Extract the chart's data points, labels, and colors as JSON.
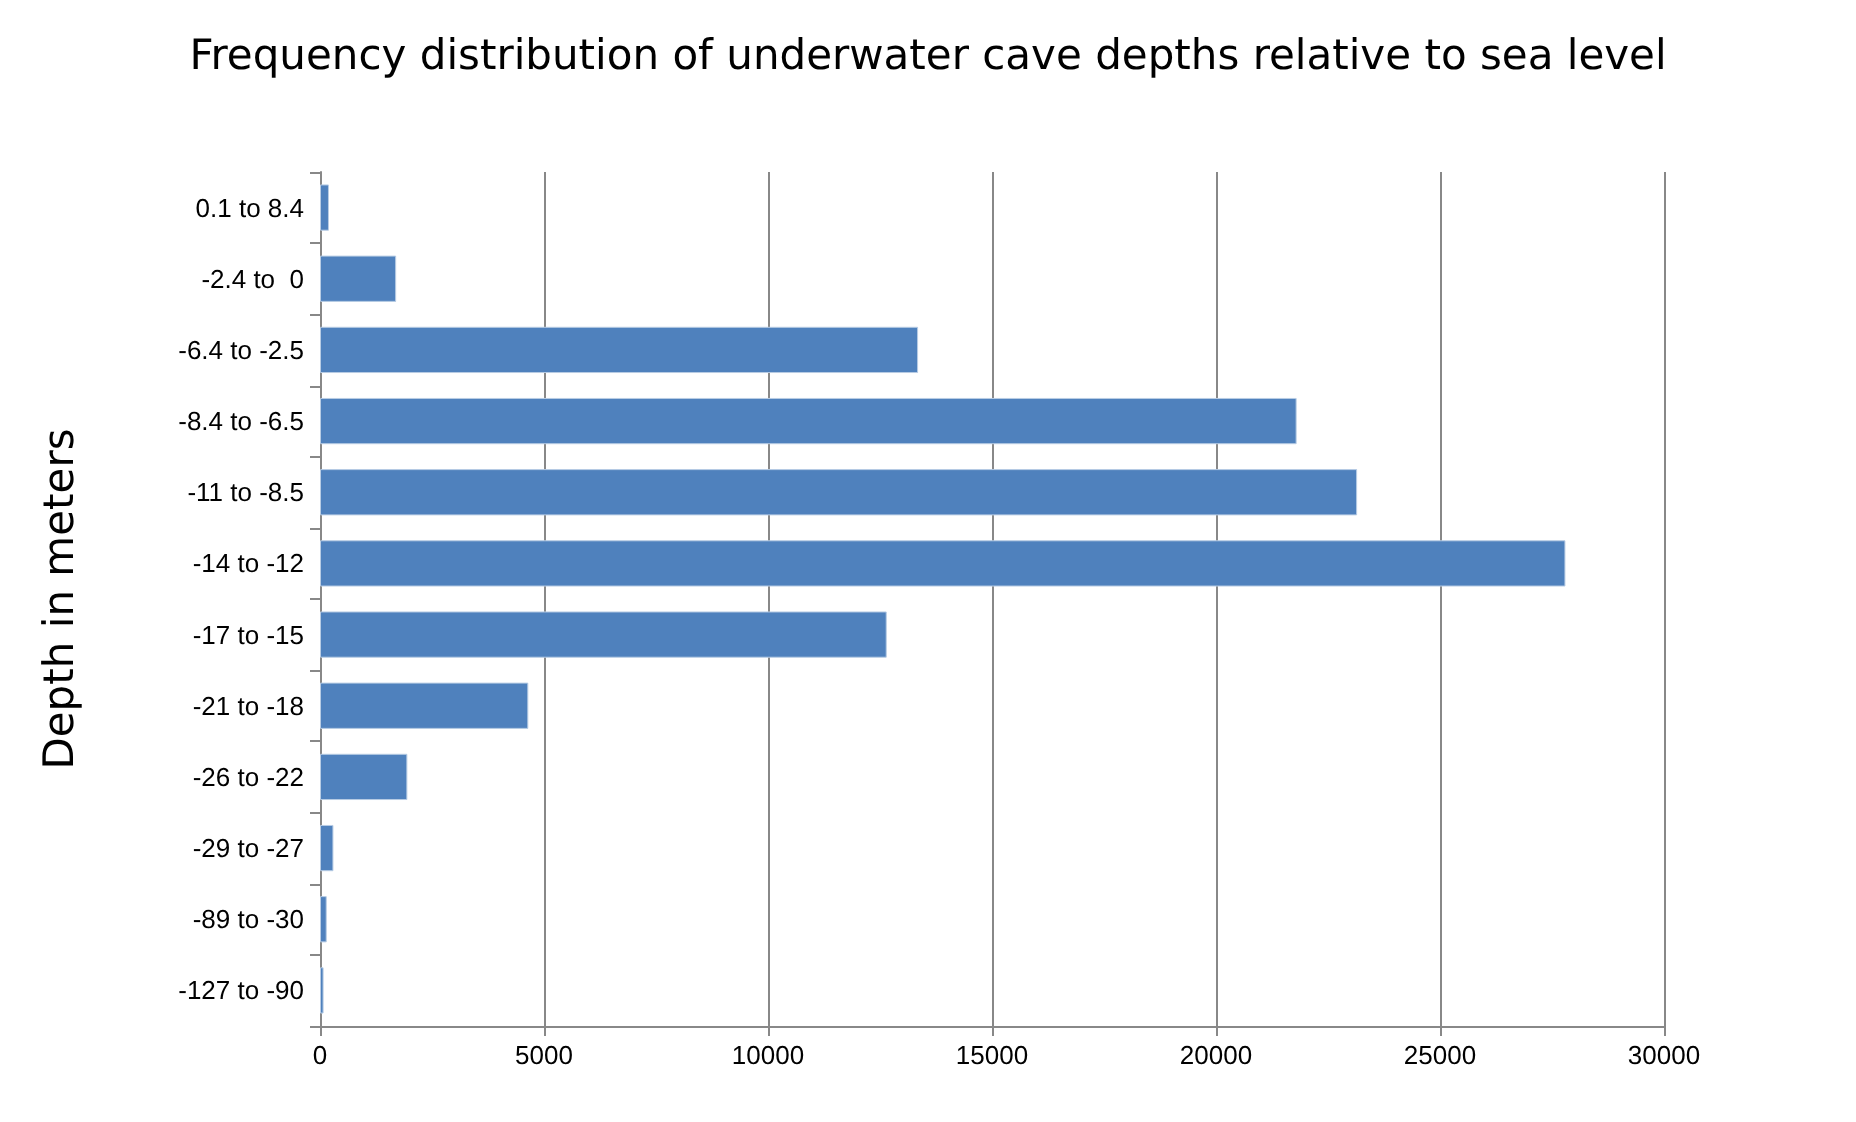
{
  "chart_data": {
    "type": "bar",
    "orientation": "horizontal",
    "title": "Frequency distribution of underwater cave depths relative to sea level",
    "ylabel": "Depth in meters",
    "categories": [
      "0.1 to 8.4",
      "-2.4 to  0",
      "-6.4 to -2.5",
      "-8.4 to -6.5",
      "-11 to -8.5",
      "-14 to -12",
      "-17 to -15",
      "-21 to -18",
      "-26 to -22",
      "-29 to -27",
      "-89 to -30",
      "-127 to -90"
    ],
    "values": [
      200,
      1700,
      13350,
      21800,
      23150,
      27800,
      12650,
      4650,
      1950,
      300,
      150,
      80
    ],
    "color": "#4f81bd",
    "xlim": [
      0,
      30000
    ],
    "xticks": [
      0,
      5000,
      10000,
      15000,
      20000,
      25000,
      30000
    ],
    "grid": "x"
  }
}
